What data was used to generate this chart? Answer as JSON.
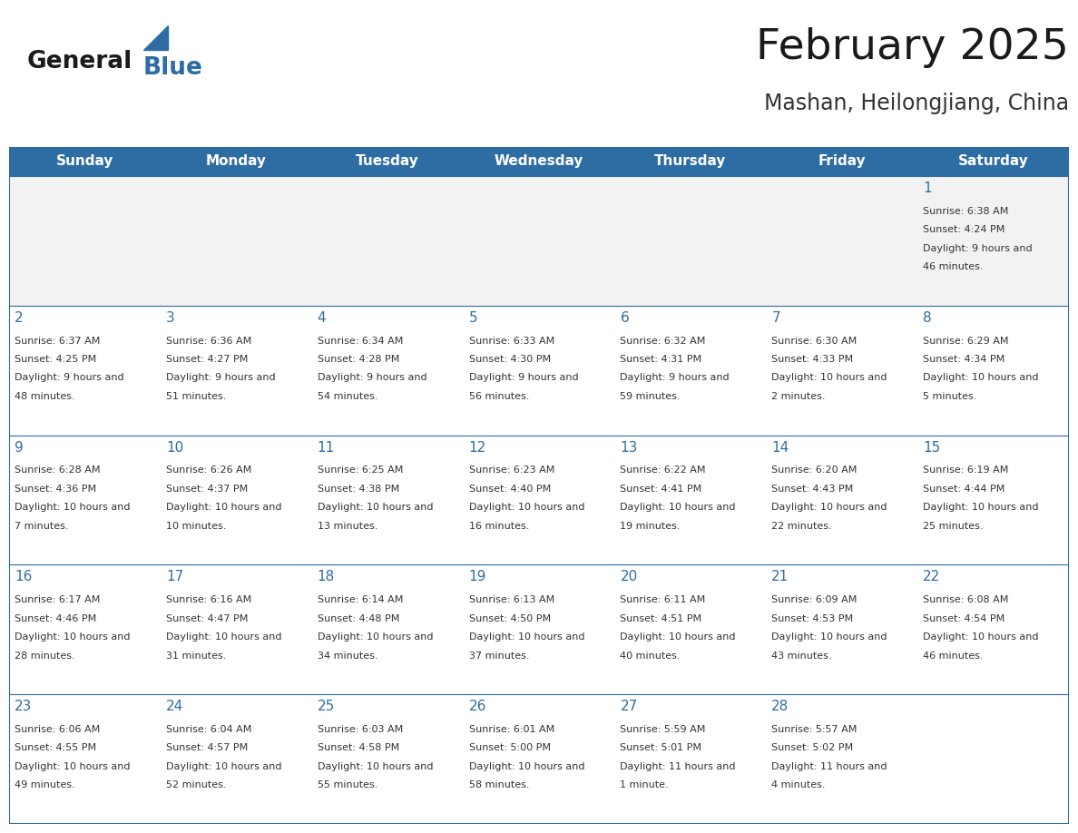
{
  "title": "February 2025",
  "subtitle": "Mashan, Heilongjiang, China",
  "header_bg": "#2E6DA4",
  "header_text_color": "#FFFFFF",
  "cell_bg": "#FFFFFF",
  "row0_bg": "#F0F0F0",
  "border_color": "#2E6DA4",
  "day_names": [
    "Sunday",
    "Monday",
    "Tuesday",
    "Wednesday",
    "Thursday",
    "Friday",
    "Saturday"
  ],
  "title_color": "#1a1a1a",
  "subtitle_color": "#333333",
  "day_num_color": "#2E6DA4",
  "cell_text_color": "#333333",
  "fig_width": 11.88,
  "fig_height": 9.18,
  "days": [
    {
      "day": 1,
      "col": 6,
      "row": 0,
      "sunrise": "6:38 AM",
      "sunset": "4:24 PM",
      "daylight": "9 hours and 46 minutes."
    },
    {
      "day": 2,
      "col": 0,
      "row": 1,
      "sunrise": "6:37 AM",
      "sunset": "4:25 PM",
      "daylight": "9 hours and 48 minutes."
    },
    {
      "day": 3,
      "col": 1,
      "row": 1,
      "sunrise": "6:36 AM",
      "sunset": "4:27 PM",
      "daylight": "9 hours and 51 minutes."
    },
    {
      "day": 4,
      "col": 2,
      "row": 1,
      "sunrise": "6:34 AM",
      "sunset": "4:28 PM",
      "daylight": "9 hours and 54 minutes."
    },
    {
      "day": 5,
      "col": 3,
      "row": 1,
      "sunrise": "6:33 AM",
      "sunset": "4:30 PM",
      "daylight": "9 hours and 56 minutes."
    },
    {
      "day": 6,
      "col": 4,
      "row": 1,
      "sunrise": "6:32 AM",
      "sunset": "4:31 PM",
      "daylight": "9 hours and 59 minutes."
    },
    {
      "day": 7,
      "col": 5,
      "row": 1,
      "sunrise": "6:30 AM",
      "sunset": "4:33 PM",
      "daylight": "10 hours and 2 minutes."
    },
    {
      "day": 8,
      "col": 6,
      "row": 1,
      "sunrise": "6:29 AM",
      "sunset": "4:34 PM",
      "daylight": "10 hours and 5 minutes."
    },
    {
      "day": 9,
      "col": 0,
      "row": 2,
      "sunrise": "6:28 AM",
      "sunset": "4:36 PM",
      "daylight": "10 hours and 7 minutes."
    },
    {
      "day": 10,
      "col": 1,
      "row": 2,
      "sunrise": "6:26 AM",
      "sunset": "4:37 PM",
      "daylight": "10 hours and 10 minutes."
    },
    {
      "day": 11,
      "col": 2,
      "row": 2,
      "sunrise": "6:25 AM",
      "sunset": "4:38 PM",
      "daylight": "10 hours and 13 minutes."
    },
    {
      "day": 12,
      "col": 3,
      "row": 2,
      "sunrise": "6:23 AM",
      "sunset": "4:40 PM",
      "daylight": "10 hours and 16 minutes."
    },
    {
      "day": 13,
      "col": 4,
      "row": 2,
      "sunrise": "6:22 AM",
      "sunset": "4:41 PM",
      "daylight": "10 hours and 19 minutes."
    },
    {
      "day": 14,
      "col": 5,
      "row": 2,
      "sunrise": "6:20 AM",
      "sunset": "4:43 PM",
      "daylight": "10 hours and 22 minutes."
    },
    {
      "day": 15,
      "col": 6,
      "row": 2,
      "sunrise": "6:19 AM",
      "sunset": "4:44 PM",
      "daylight": "10 hours and 25 minutes."
    },
    {
      "day": 16,
      "col": 0,
      "row": 3,
      "sunrise": "6:17 AM",
      "sunset": "4:46 PM",
      "daylight": "10 hours and 28 minutes."
    },
    {
      "day": 17,
      "col": 1,
      "row": 3,
      "sunrise": "6:16 AM",
      "sunset": "4:47 PM",
      "daylight": "10 hours and 31 minutes."
    },
    {
      "day": 18,
      "col": 2,
      "row": 3,
      "sunrise": "6:14 AM",
      "sunset": "4:48 PM",
      "daylight": "10 hours and 34 minutes."
    },
    {
      "day": 19,
      "col": 3,
      "row": 3,
      "sunrise": "6:13 AM",
      "sunset": "4:50 PM",
      "daylight": "10 hours and 37 minutes."
    },
    {
      "day": 20,
      "col": 4,
      "row": 3,
      "sunrise": "6:11 AM",
      "sunset": "4:51 PM",
      "daylight": "10 hours and 40 minutes."
    },
    {
      "day": 21,
      "col": 5,
      "row": 3,
      "sunrise": "6:09 AM",
      "sunset": "4:53 PM",
      "daylight": "10 hours and 43 minutes."
    },
    {
      "day": 22,
      "col": 6,
      "row": 3,
      "sunrise": "6:08 AM",
      "sunset": "4:54 PM",
      "daylight": "10 hours and 46 minutes."
    },
    {
      "day": 23,
      "col": 0,
      "row": 4,
      "sunrise": "6:06 AM",
      "sunset": "4:55 PM",
      "daylight": "10 hours and 49 minutes."
    },
    {
      "day": 24,
      "col": 1,
      "row": 4,
      "sunrise": "6:04 AM",
      "sunset": "4:57 PM",
      "daylight": "10 hours and 52 minutes."
    },
    {
      "day": 25,
      "col": 2,
      "row": 4,
      "sunrise": "6:03 AM",
      "sunset": "4:58 PM",
      "daylight": "10 hours and 55 minutes."
    },
    {
      "day": 26,
      "col": 3,
      "row": 4,
      "sunrise": "6:01 AM",
      "sunset": "5:00 PM",
      "daylight": "10 hours and 58 minutes."
    },
    {
      "day": 27,
      "col": 4,
      "row": 4,
      "sunrise": "5:59 AM",
      "sunset": "5:01 PM",
      "daylight": "11 hours and 1 minute."
    },
    {
      "day": 28,
      "col": 5,
      "row": 4,
      "sunrise": "5:57 AM",
      "sunset": "5:02 PM",
      "daylight": "11 hours and 4 minutes."
    }
  ]
}
